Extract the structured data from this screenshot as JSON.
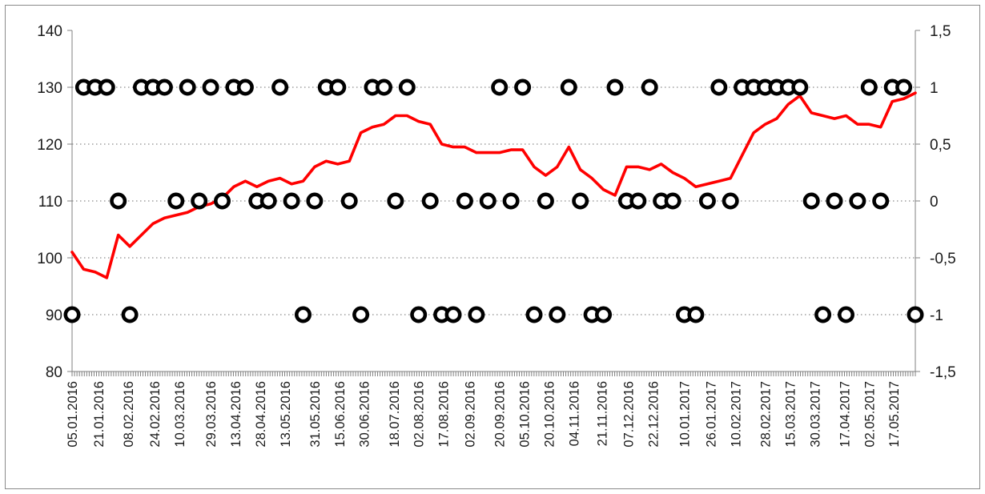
{
  "chart_data": {
    "type": "line",
    "series": [
      {
        "axis": "left",
        "style": "line",
        "color": "#ff0000",
        "x": [
          "05.01.2016",
          "12.01.2016",
          "19.01.2016",
          "26.01.2016",
          "02.02.2016",
          "09.02.2016",
          "16.02.2016",
          "23.02.2016",
          "01.03.2016",
          "08.03.2016",
          "15.03.2016",
          "22.03.2016",
          "29.03.2016",
          "05.04.2016",
          "12.04.2016",
          "19.04.2016",
          "26.04.2016",
          "03.05.2016",
          "10.05.2016",
          "17.05.2016",
          "24.05.2016",
          "31.05.2016",
          "07.06.2016",
          "14.06.2016",
          "21.06.2016",
          "28.06.2016",
          "05.07.2016",
          "12.07.2016",
          "19.07.2016",
          "26.07.2016",
          "02.08.2016",
          "09.08.2016",
          "16.08.2016",
          "23.08.2016",
          "30.08.2016",
          "06.09.2016",
          "13.09.2016",
          "20.09.2016",
          "27.09.2016",
          "04.10.2016",
          "11.10.2016",
          "18.10.2016",
          "25.10.2016",
          "01.11.2016",
          "08.11.2016",
          "15.11.2016",
          "22.11.2016",
          "29.11.2016",
          "06.12.2016",
          "13.12.2016",
          "20.12.2016",
          "27.12.2016",
          "03.01.2017",
          "10.01.2017",
          "17.01.2017",
          "24.01.2017",
          "31.01.2017",
          "07.02.2017",
          "14.02.2017",
          "21.02.2017",
          "28.02.2017",
          "07.03.2017",
          "14.03.2017",
          "21.03.2017",
          "28.03.2017",
          "04.04.2017",
          "11.04.2017",
          "18.04.2017",
          "25.04.2017",
          "02.05.2017",
          "09.05.2017",
          "16.05.2017",
          "23.05.2017",
          "30.05.2017"
        ],
        "values": [
          101,
          98,
          97.5,
          96.5,
          104,
          102,
          104,
          106,
          107,
          107.5,
          108,
          109,
          109.5,
          110.5,
          112.5,
          113.5,
          112.5,
          113.5,
          114,
          113,
          113.5,
          116,
          117,
          116.5,
          117,
          122,
          123,
          123.5,
          125,
          125,
          124,
          123.5,
          120,
          119.5,
          119.5,
          118.5,
          118.5,
          118.5,
          119,
          119,
          116,
          114.5,
          116,
          119.5,
          115.5,
          114,
          112,
          111,
          116,
          116,
          115.5,
          116.5,
          115,
          114,
          112.5,
          113,
          113.5,
          114,
          118,
          122,
          123.5,
          124.5,
          127,
          128.5,
          125.5,
          125,
          124.5,
          125,
          123.5,
          123.5,
          123,
          127.5,
          128,
          129
        ]
      },
      {
        "axis": "right",
        "style": "markers",
        "marker": "ring",
        "color": "#000000",
        "x": [
          "05.01.2016",
          "12.01.2016",
          "19.01.2016",
          "26.01.2016",
          "02.02.2016",
          "09.02.2016",
          "16.02.2016",
          "23.02.2016",
          "01.03.2016",
          "08.03.2016",
          "15.03.2016",
          "22.03.2016",
          "29.03.2016",
          "05.04.2016",
          "12.04.2016",
          "19.04.2016",
          "26.04.2016",
          "03.05.2016",
          "10.05.2016",
          "17.05.2016",
          "24.05.2016",
          "31.05.2016",
          "07.06.2016",
          "14.06.2016",
          "21.06.2016",
          "28.06.2016",
          "05.07.2016",
          "12.07.2016",
          "19.07.2016",
          "26.07.2016",
          "02.08.2016",
          "09.08.2016",
          "16.08.2016",
          "23.08.2016",
          "30.08.2016",
          "06.09.2016",
          "13.09.2016",
          "20.09.2016",
          "27.09.2016",
          "04.10.2016",
          "11.10.2016",
          "18.10.2016",
          "25.10.2016",
          "01.11.2016",
          "08.11.2016",
          "15.11.2016",
          "22.11.2016",
          "29.11.2016",
          "06.12.2016",
          "13.12.2016",
          "20.12.2016",
          "27.12.2016",
          "03.01.2017",
          "10.01.2017",
          "17.01.2017",
          "24.01.2017",
          "31.01.2017",
          "07.02.2017",
          "14.02.2017",
          "21.02.2017",
          "28.02.2017",
          "07.03.2017",
          "14.03.2017",
          "21.03.2017",
          "28.03.2017",
          "04.04.2017",
          "11.04.2017",
          "18.04.2017",
          "25.04.2017",
          "02.05.2017",
          "09.05.2017",
          "16.05.2017",
          "23.05.2017",
          "30.05.2017"
        ],
        "values": [
          -1,
          1,
          1,
          1,
          0,
          -1,
          1,
          1,
          1,
          0,
          1,
          0,
          1,
          0,
          1,
          1,
          0,
          0,
          1,
          0,
          -1,
          0,
          1,
          1,
          0,
          -1,
          1,
          1,
          0,
          1,
          -1,
          0,
          -1,
          -1,
          0,
          -1,
          0,
          1,
          0,
          1,
          -1,
          0,
          -1,
          1,
          0,
          -1,
          -1,
          1,
          0,
          0,
          1,
          0,
          0,
          -1,
          -1,
          0,
          1,
          0,
          1,
          1,
          1,
          1,
          1,
          1,
          0,
          -1,
          0,
          -1,
          0,
          1,
          0,
          1,
          1,
          -1
        ]
      }
    ],
    "y_left": {
      "min": 80,
      "max": 140,
      "ticks": [
        "80",
        "90",
        "100",
        "110",
        "120",
        "130",
        "140"
      ]
    },
    "y_right": {
      "min": -1.5,
      "max": 1.5,
      "ticks": [
        "-1,5",
        "-1",
        "-0,5",
        "0",
        "0,5",
        "1",
        "1,5"
      ]
    },
    "x_tick_labels": [
      "05.01.2016",
      "21.01.2016",
      "08.02.2016",
      "24.02.2016",
      "10.03.2016",
      "29.03.2016",
      "13.04.2016",
      "28.04.2016",
      "13.05.2016",
      "31.05.2016",
      "15.06.2016",
      "30.06.2016",
      "18.07.2016",
      "02.08.2016",
      "17.08.2016",
      "02.09.2016",
      "20.09.2016",
      "05.10.2016",
      "20.10.2016",
      "04.11.2016",
      "21.11.2016",
      "07.12.2016",
      "22.12.2016",
      "10.01.2017",
      "26.01.2017",
      "10.02.2017",
      "28.02.2017",
      "15.03.2017",
      "30.03.2017",
      "17.04.2017",
      "02.05.2017",
      "17.05.2017"
    ],
    "grid": "dotted horizontal at left-axis ticks",
    "legend": "none"
  }
}
